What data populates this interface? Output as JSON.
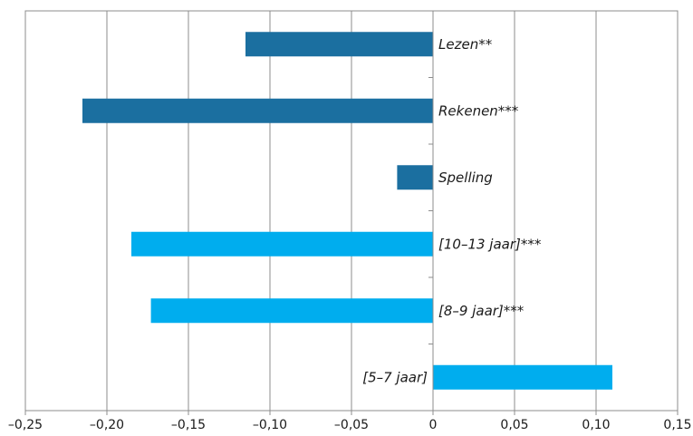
{
  "chart_data": {
    "type": "bar",
    "orientation": "horizontal",
    "categories": [
      "Lezen**",
      "Rekenen***",
      "Spelling",
      "[10–13 jaar]***",
      "[8–9 jaar]***",
      "[5–7 jaar]"
    ],
    "values": [
      -0.115,
      -0.215,
      -0.022,
      -0.185,
      -0.173,
      0.11
    ],
    "bar_colors": [
      "#1b6fa0",
      "#1b6fa0",
      "#1b6fa0",
      "#00adee",
      "#00adee",
      "#00adee"
    ],
    "title": "",
    "xlabel": "",
    "ylabel": "",
    "xlim": [
      -0.25,
      0.15
    ],
    "x_ticks": [
      -0.25,
      -0.2,
      -0.15,
      -0.1,
      -0.05,
      0,
      0.05,
      0.1,
      0.15
    ],
    "x_tick_labels": [
      "–0,25",
      "–0,20",
      "–0,15",
      "–0,10",
      "–0,05",
      "0",
      "0,05",
      "0,10",
      "0,15"
    ],
    "grid": "vertical",
    "legend": "none"
  },
  "colors": {
    "dark_bar": "#1b6fa0",
    "light_bar": "#00adee",
    "grid": "#8c8c8c",
    "frame": "#8c8c8c",
    "text": "#1a1a1a"
  }
}
